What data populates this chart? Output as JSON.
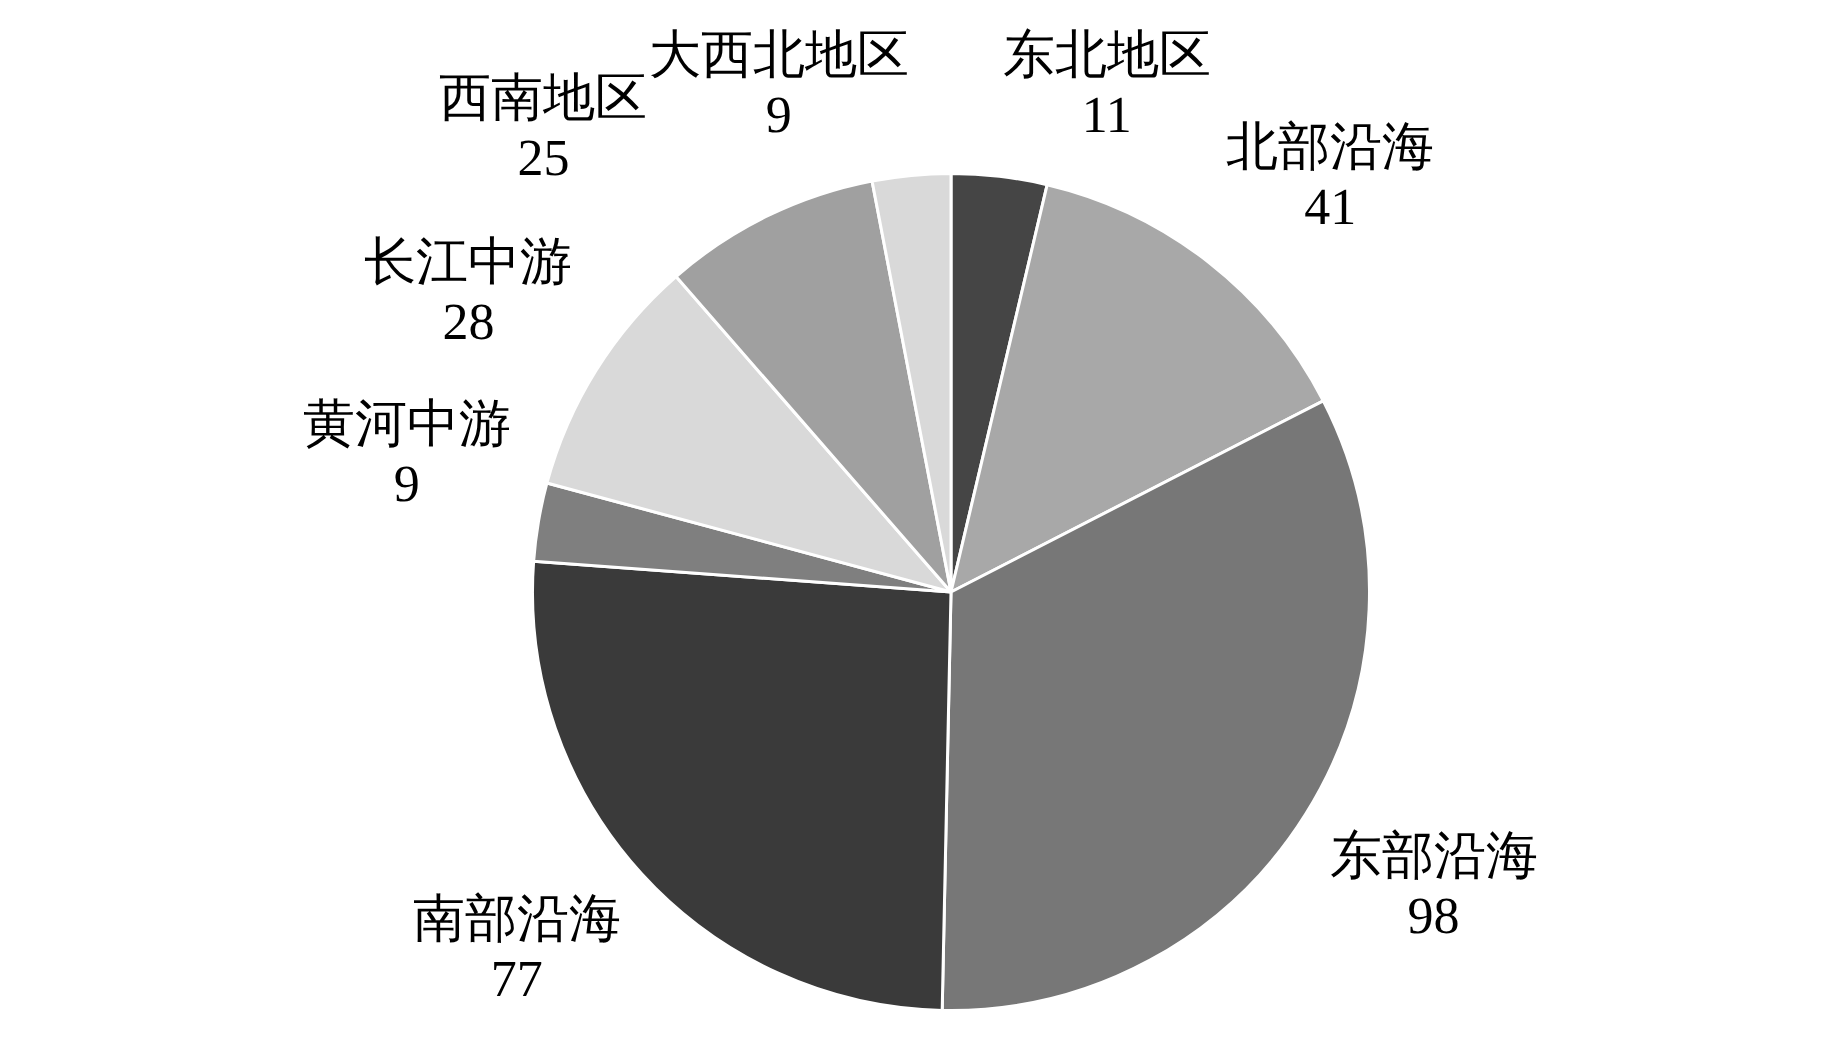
{
  "chart_data": {
    "type": "pie",
    "categories": [
      "东北地区",
      "北部沿海",
      "东部沿海",
      "南部沿海",
      "黄河中游",
      "长江中游",
      "西南地区",
      "大西北地区"
    ],
    "values": [
      11,
      41,
      98,
      77,
      9,
      28,
      25,
      9
    ],
    "colors": [
      "#454545",
      "#a8a8a8",
      "#777777",
      "#3a3a3a",
      "#7f7f7f",
      "#d9d9d9",
      "#a0a0a0",
      "#d9d9d9"
    ],
    "data_labels": true,
    "legend": false
  }
}
